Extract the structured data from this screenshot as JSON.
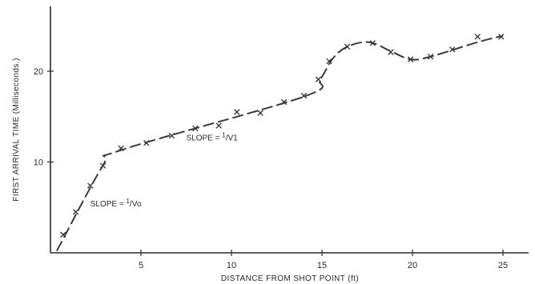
{
  "chart_data": {
    "type": "scatter",
    "xlabel": "DISTANCE FROM SHOT POINT (ft)",
    "ylabel": "FIRST ARRIVAL TIME (Milliseconds.)",
    "xlim": [
      0,
      26.5
    ],
    "ylim": [
      0,
      27
    ],
    "x_ticks": [
      5,
      10,
      15,
      20,
      25
    ],
    "y_ticks": [
      10,
      20
    ],
    "grid": false,
    "points": [
      {
        "x": 0.7,
        "y": 2.0
      },
      {
        "x": 1.4,
        "y": 4.5
      },
      {
        "x": 2.2,
        "y": 7.4
      },
      {
        "x": 2.9,
        "y": 9.6
      },
      {
        "x": 3.9,
        "y": 11.5
      },
      {
        "x": 5.3,
        "y": 12.1
      },
      {
        "x": 6.7,
        "y": 12.9
      },
      {
        "x": 8.0,
        "y": 13.7
      },
      {
        "x": 9.3,
        "y": 14.0
      },
      {
        "x": 10.3,
        "y": 15.5
      },
      {
        "x": 11.6,
        "y": 15.4
      },
      {
        "x": 12.9,
        "y": 16.6
      },
      {
        "x": 14.0,
        "y": 17.3
      },
      {
        "x": 14.8,
        "y": 19.1
      },
      {
        "x": 15.4,
        "y": 21.1
      },
      {
        "x": 16.4,
        "y": 22.7
      },
      {
        "x": 17.8,
        "y": 23.1
      },
      {
        "x": 18.8,
        "y": 22.1
      },
      {
        "x": 19.9,
        "y": 21.3
      },
      {
        "x": 21.0,
        "y": 21.6
      },
      {
        "x": 22.2,
        "y": 22.4
      },
      {
        "x": 23.6,
        "y": 23.8
      },
      {
        "x": 24.9,
        "y": 23.8
      }
    ],
    "fit_curve": [
      {
        "x": 0.35,
        "y": 0.2
      },
      {
        "x": 2.9,
        "y": 9.6
      },
      {
        "x": 3.9,
        "y": 11.3
      },
      {
        "x": 14.0,
        "y": 17.2
      },
      {
        "x": 14.9,
        "y": 19.1
      },
      {
        "x": 15.6,
        "y": 21.4
      },
      {
        "x": 16.4,
        "y": 22.7
      },
      {
        "x": 17.6,
        "y": 23.2
      },
      {
        "x": 18.8,
        "y": 22.2
      },
      {
        "x": 19.9,
        "y": 21.3
      },
      {
        "x": 21.0,
        "y": 21.6
      },
      {
        "x": 23.6,
        "y": 23.2
      },
      {
        "x": 25.0,
        "y": 23.9
      }
    ],
    "annotations": [
      {
        "prefix": "SLOPE = ",
        "sup": "1",
        "slash": "/",
        "base": "V",
        "sub": "1",
        "x": 7.5,
        "y": 12.4
      },
      {
        "prefix": "SLOPE = ",
        "sup": "1",
        "slash": "/",
        "base": "V",
        "sub": "o",
        "x": 2.2,
        "y": 5.1
      }
    ]
  }
}
